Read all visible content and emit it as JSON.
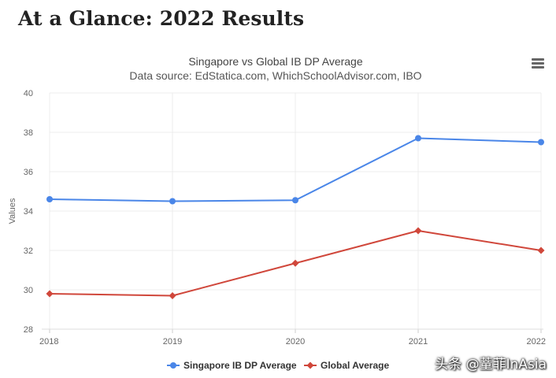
{
  "page": {
    "heading": "At a Glance: 2022 Results",
    "watermark": "头条 @蕫菲InAsia"
  },
  "colors": {
    "singapore": "#4a86e8",
    "global": "#d0473b",
    "grid": "#ececec",
    "axis_text": "#666666",
    "title_text": "#444444"
  },
  "icons": {
    "menu": "hamburger-menu-icon"
  },
  "chart_data": {
    "type": "line",
    "title": "Singapore vs Global IB DP Average",
    "subtitle": "Data source: EdStatica.com, WhichSchoolAdvisor.com, IBO",
    "xlabel": "",
    "ylabel": "Values",
    "categories": [
      "2018",
      "2019",
      "2020",
      "2021",
      "2022"
    ],
    "ylim": [
      28,
      40
    ],
    "yticks": [
      28,
      30,
      32,
      34,
      36,
      38,
      40
    ],
    "grid": true,
    "legend_position": "bottom-center",
    "series": [
      {
        "name": "Singapore IB DP Average",
        "color": "#4a86e8",
        "marker": "circle",
        "values": [
          34.6,
          34.5,
          34.55,
          37.7,
          37.5
        ]
      },
      {
        "name": "Global Average",
        "color": "#d0473b",
        "marker": "diamond",
        "values": [
          29.8,
          29.7,
          31.35,
          33.0,
          32.0
        ]
      }
    ]
  }
}
